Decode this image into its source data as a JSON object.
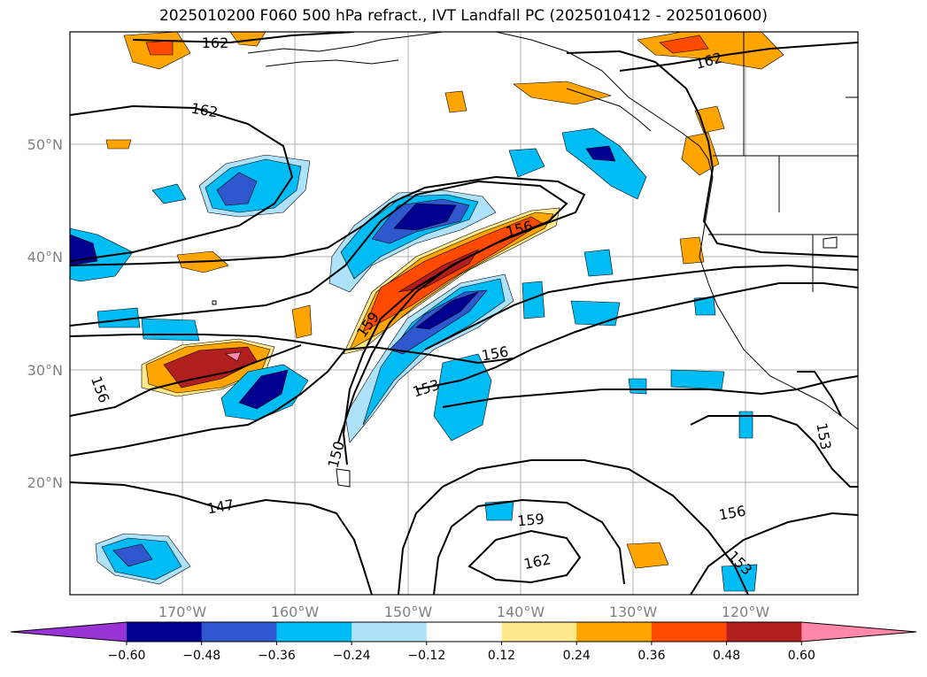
{
  "title": "2025010200 F060 500 hPa refract., IVT Landfall PC (2025010412 - 2025010600)",
  "map": {
    "lat_labels": [
      "50°N",
      "40°N",
      "30°N",
      "20°N"
    ],
    "lon_labels": [
      "170°W",
      "160°W",
      "150°W",
      "140°W",
      "130°W",
      "120°W"
    ],
    "contour_labels": [
      "162",
      "162",
      "162",
      "156",
      "159",
      "156",
      "153",
      "156",
      "150",
      "147",
      "159",
      "162",
      "156",
      "153",
      "153"
    ]
  },
  "colorbar": {
    "ticks": [
      "−0.60",
      "−0.48",
      "−0.36",
      "−0.24",
      "−0.12",
      "0.12",
      "0.24",
      "0.36",
      "0.48",
      "0.60"
    ],
    "colors": [
      "#9a33d6",
      "#000090",
      "#2f58cf",
      "#00bcf5",
      "#aee1fa",
      "#ffffff",
      "#ffe98c",
      "#ffa500",
      "#ff4a00",
      "#b01e1e",
      "#ff88aa"
    ]
  }
}
